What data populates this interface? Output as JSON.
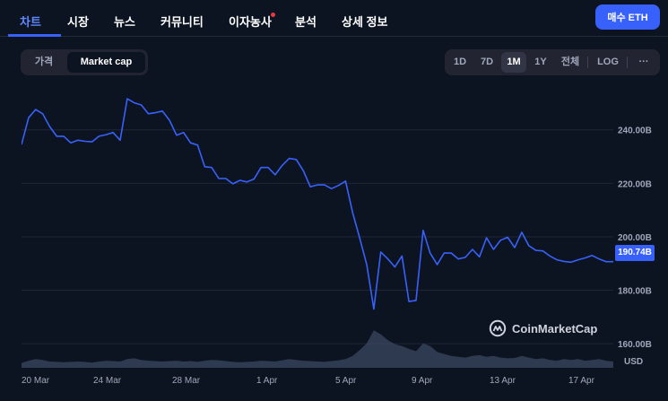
{
  "nav": {
    "tabs": [
      {
        "label": "차트",
        "active": true
      },
      {
        "label": "시장",
        "active": false
      },
      {
        "label": "뉴스",
        "active": false
      },
      {
        "label": "커뮤니티",
        "active": false
      },
      {
        "label": "이자농사",
        "active": false,
        "badge": true
      },
      {
        "label": "분석",
        "active": false
      },
      {
        "label": "상세 정보",
        "active": false
      }
    ],
    "buy_label": "매수 ETH"
  },
  "view_toggle": {
    "options": [
      "가격",
      "Market cap"
    ],
    "selected": "Market cap"
  },
  "range": {
    "options": [
      "1D",
      "7D",
      "1M",
      "1Y",
      "전체"
    ],
    "selected": "1M",
    "log_label": "LOG",
    "more_label": "···"
  },
  "watermark": "CoinMarketCap",
  "colors": {
    "line": "#3861fb",
    "volume": "#4a5a78",
    "accent": "#3861fb"
  },
  "chart_data": {
    "type": "line",
    "title": "",
    "xlabel": "",
    "ylabel": "USD",
    "x_ticks": [
      "20 Mar",
      "24 Mar",
      "28 Mar",
      "1 Apr",
      "5 Apr",
      "9 Apr",
      "13 Apr",
      "17 Apr"
    ],
    "y_ticks": [
      "160.00B",
      "180.00B",
      "200.00B",
      "220.00B",
      "240.00B"
    ],
    "y_unit": "B",
    "ylim": [
      151,
      255
    ],
    "grid": true,
    "current_value_label": "190.74B",
    "series": [
      {
        "values": [
          234.5,
          244.5,
          247.6,
          246.0,
          241.2,
          237.6,
          237.6,
          235.1,
          236.1,
          235.7,
          235.5,
          237.6,
          238.2,
          239.0,
          236.1,
          251.6,
          250.1,
          249.3,
          246.0,
          246.4,
          247.0,
          243.6,
          238.0,
          239.0,
          235.1,
          234.3,
          226.2,
          225.9,
          221.8,
          221.8,
          219.8,
          221.1,
          220.5,
          221.6,
          225.9,
          225.9,
          223.2,
          226.7,
          229.3,
          228.9,
          224.7,
          218.7,
          219.4,
          219.4,
          218.0,
          219.2,
          220.8,
          209.0,
          199.6,
          189.6,
          173.0,
          194.3,
          191.7,
          188.7,
          192.8,
          175.8,
          176.2,
          202.4,
          193.9,
          189.6,
          193.9,
          193.9,
          191.7,
          192.3,
          195.3,
          192.5,
          199.6,
          195.3,
          198.7,
          199.8,
          196.0,
          201.7,
          196.7,
          194.9,
          194.7,
          192.8,
          191.4,
          190.8,
          190.5,
          191.4,
          192.1,
          193.0,
          191.7,
          190.7,
          190.7
        ]
      }
    ],
    "volume": [
      0.12,
      0.18,
      0.22,
      0.2,
      0.16,
      0.15,
      0.14,
      0.15,
      0.16,
      0.15,
      0.13,
      0.16,
      0.18,
      0.17,
      0.16,
      0.22,
      0.24,
      0.2,
      0.18,
      0.17,
      0.16,
      0.17,
      0.18,
      0.16,
      0.17,
      0.15,
      0.18,
      0.2,
      0.19,
      0.17,
      0.15,
      0.14,
      0.15,
      0.16,
      0.18,
      0.17,
      0.16,
      0.19,
      0.22,
      0.2,
      0.18,
      0.17,
      0.16,
      0.15,
      0.17,
      0.19,
      0.22,
      0.3,
      0.45,
      0.62,
      0.95,
      0.85,
      0.7,
      0.6,
      0.55,
      0.48,
      0.42,
      0.62,
      0.55,
      0.4,
      0.35,
      0.3,
      0.28,
      0.26,
      0.3,
      0.32,
      0.28,
      0.3,
      0.26,
      0.24,
      0.25,
      0.3,
      0.26,
      0.22,
      0.24,
      0.2,
      0.18,
      0.22,
      0.2,
      0.22,
      0.18,
      0.2,
      0.22,
      0.18,
      0.16
    ]
  }
}
